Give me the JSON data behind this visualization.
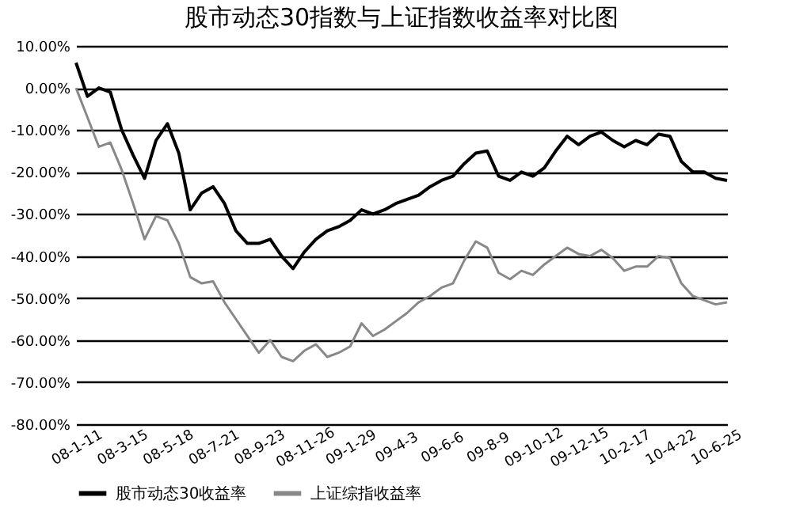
{
  "chart_data": {
    "type": "line",
    "title": "股市动态30指数与上证指数收益率对比图",
    "categories": [
      "08-1-11",
      null,
      null,
      null,
      "08-3-15",
      null,
      null,
      null,
      "08-5-18",
      null,
      null,
      null,
      "08-7-21",
      null,
      null,
      null,
      "08-9-23",
      null,
      null,
      null,
      "08-11-26",
      null,
      null,
      null,
      "09-1-29",
      null,
      null,
      null,
      "09-4-3",
      null,
      null,
      null,
      "09-6-6",
      null,
      null,
      null,
      "09-8-9",
      null,
      null,
      null,
      "09-10-12",
      null,
      null,
      null,
      "09-12-15",
      null,
      null,
      null,
      "10-2-17",
      null,
      null,
      null,
      "10-4-22",
      null,
      null,
      null,
      "10-6-25",
      null
    ],
    "series": [
      {
        "name": "股市动态30收益率",
        "color": "#000000",
        "values": [
          6,
          -2,
          0,
          -1,
          -10,
          -16,
          -21.5,
          -12.5,
          -8.5,
          -15.5,
          -29,
          -25,
          -23.5,
          -27.5,
          -34,
          -37,
          -37,
          -36,
          -40,
          -43,
          -39,
          -36,
          -34,
          -33,
          -31.5,
          -29,
          -30,
          -29,
          -27.5,
          -26.5,
          -25.5,
          -23.5,
          -22,
          -21,
          -18,
          -15.5,
          -15,
          -21,
          -22,
          -20,
          -21,
          -19,
          -15,
          -11.5,
          -13.5,
          -11.5,
          -10.5,
          -12.5,
          -14,
          -12.5,
          -13.5,
          -11,
          -11.5,
          -17.5,
          -20,
          -20,
          -21.5,
          -22
        ]
      },
      {
        "name": "上证综指收益率",
        "color": "#888888",
        "values": [
          0,
          -7,
          -14,
          -13,
          -19.5,
          -27.5,
          -36,
          -30.5,
          -31.5,
          -37,
          -45,
          -46.5,
          -46,
          -51,
          -55,
          -59,
          -63,
          -60,
          -64,
          -65,
          -62.5,
          -61,
          -64,
          -63,
          -61.5,
          -56,
          -59,
          -57.5,
          -55.5,
          -53.5,
          -51,
          -49.5,
          -47.5,
          -46.5,
          -41,
          -36.5,
          -38,
          -44,
          -45.5,
          -43.5,
          -44.5,
          -42,
          -40,
          -38,
          -39.5,
          -40,
          -38.5,
          -40.5,
          -43.5,
          -42.5,
          -42.5,
          -40,
          -40.5,
          -46.5,
          -49.5,
          -50.5,
          -51.5,
          -51
        ]
      }
    ],
    "ylim": [
      -80,
      10
    ],
    "yticks": [
      {
        "value": -80,
        "label": "-80.00%"
      },
      {
        "value": -70,
        "label": "-70.00%"
      },
      {
        "value": -60,
        "label": "-60.00%"
      },
      {
        "value": -50,
        "label": "-50.00%"
      },
      {
        "value": -40,
        "label": "-40.00%"
      },
      {
        "value": -30,
        "label": "-30.00%"
      },
      {
        "value": -20,
        "label": "-20.00%"
      },
      {
        "value": -10,
        "label": "-10.00%"
      },
      {
        "value": 0,
        "label": "0.00%"
      },
      {
        "value": 10,
        "label": "10.00%"
      }
    ],
    "grid": "y",
    "legend": "bottom",
    "marker": "none",
    "line_style": "solid"
  }
}
